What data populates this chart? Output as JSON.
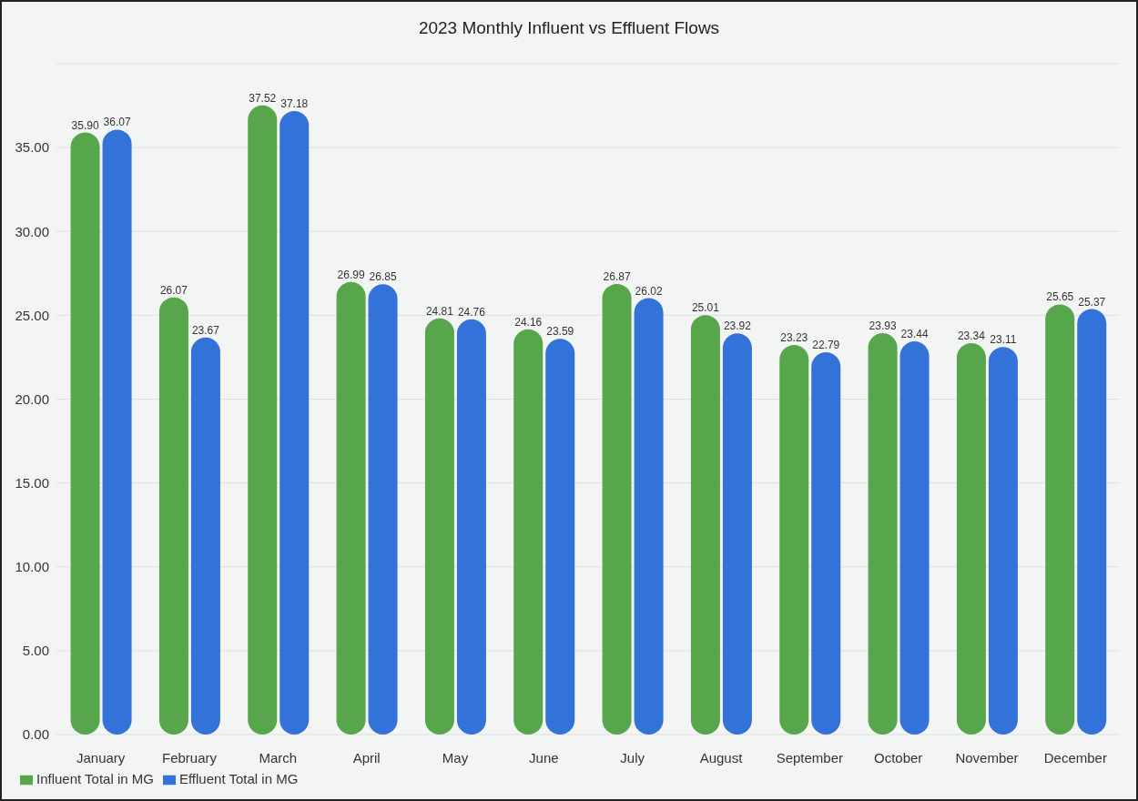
{
  "chart_data": {
    "type": "bar",
    "title": "2023 Monthly Influent vs Effluent Flows",
    "categories": [
      "January",
      "February",
      "March",
      "April",
      "May",
      "June",
      "July",
      "August",
      "September",
      "October",
      "November",
      "December"
    ],
    "series": [
      {
        "name": "Influent Total in MG",
        "color": "#57a64b",
        "values": [
          35.9,
          26.07,
          37.52,
          26.99,
          24.81,
          24.16,
          26.87,
          25.01,
          23.23,
          23.93,
          23.34,
          25.65
        ],
        "value_labels": [
          "35.90",
          "26.07",
          "37.52",
          "26.99",
          "24.81",
          "24.16",
          "26.87",
          "25.01",
          "23.23",
          "23.93",
          "23.34",
          "25.65"
        ]
      },
      {
        "name": "Effluent Total in MG",
        "color": "#3272d9",
        "values": [
          36.07,
          23.67,
          37.18,
          26.85,
          24.76,
          23.59,
          26.02,
          23.92,
          22.79,
          23.44,
          23.11,
          25.37
        ],
        "value_labels": [
          "36.07",
          "23.67",
          "37.18",
          "26.85",
          "24.76",
          "23.59",
          "26.02",
          "23.92",
          "22.79",
          "23.44",
          "23.11",
          "25.37"
        ]
      }
    ],
    "ylim": [
      0,
      40
    ],
    "yticks": [
      {
        "value": 0,
        "label": "0.00"
      },
      {
        "value": 5,
        "label": "5.00"
      },
      {
        "value": 10,
        "label": "10.00"
      },
      {
        "value": 15,
        "label": "15.00"
      },
      {
        "value": 20,
        "label": "20.00"
      },
      {
        "value": 25,
        "label": "25.00"
      },
      {
        "value": 30,
        "label": "30.00"
      },
      {
        "value": 35,
        "label": "35.00"
      }
    ],
    "grid": "y",
    "legend": "bottom left"
  }
}
